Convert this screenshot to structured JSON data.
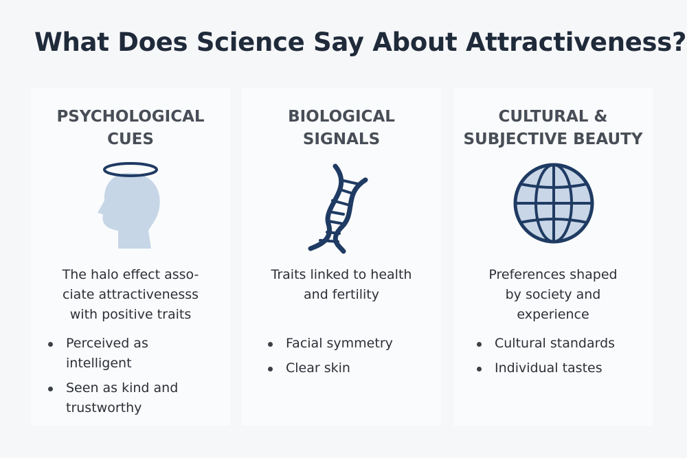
{
  "header": {
    "title": "What Does Science Say About Attractiveness?"
  },
  "columns": [
    {
      "heading": [
        "PSYCHOLOGICAL",
        "CUES"
      ],
      "description": [
        "The halo effect asso-",
        "ciate attractivenesss",
        "with positive traits"
      ],
      "bullets": [
        "Perceived as intelligent",
        "Seen as kind and trustworthy"
      ]
    },
    {
      "heading": [
        "BIOLOGICAL",
        "SIGNALS"
      ],
      "description": [
        "Traits linked to health",
        "and fertility"
      ],
      "bullets": [
        "Facial symmetry",
        "Clear skin"
      ]
    },
    {
      "heading": [
        "CULTURAL &",
        "SUBJECTIVE BEAUTY"
      ],
      "description": [
        "Preferences shaped",
        "by society and",
        "experience"
      ],
      "bullets": [
        "Cultural standards",
        "Individual tastes"
      ]
    }
  ]
}
